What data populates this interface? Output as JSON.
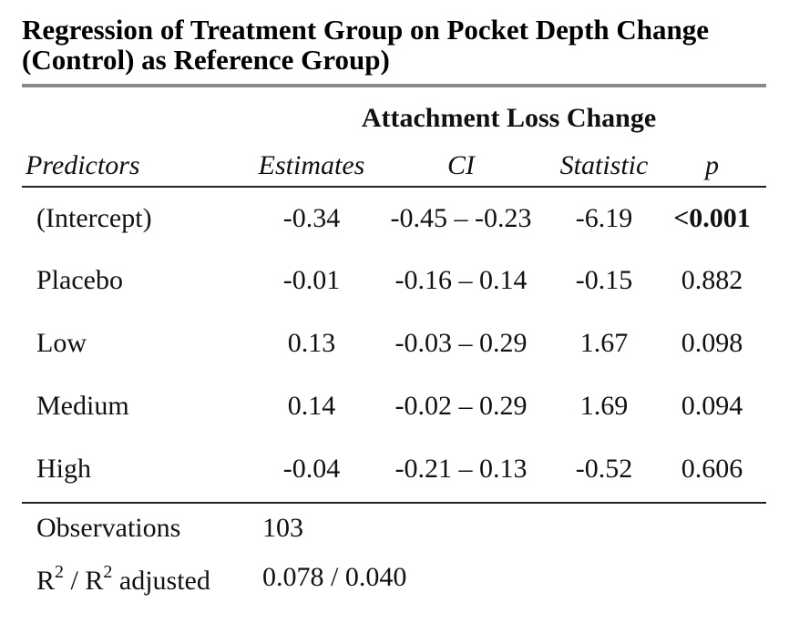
{
  "caption": {
    "line1": "Regression of Treatment Group on Pocket Depth Change",
    "line2": "(Control) as Reference Group)"
  },
  "dependent_variable": "Attachment Loss Change",
  "columns": {
    "predictors": "Predictors",
    "estimates": "Estimates",
    "ci": "CI",
    "statistic": "Statistic",
    "p": "p"
  },
  "rows": [
    {
      "predictor": "(Intercept)",
      "estimate": "-0.34",
      "ci": "-0.45 – -0.23",
      "statistic": "-6.19",
      "p": "<0.001",
      "p_bold": true
    },
    {
      "predictor": "Placebo",
      "estimate": "-0.01",
      "ci": "-0.16 – 0.14",
      "statistic": "-0.15",
      "p": "0.882",
      "p_bold": false
    },
    {
      "predictor": "Low",
      "estimate": "0.13",
      "ci": "-0.03 – 0.29",
      "statistic": "1.67",
      "p": "0.098",
      "p_bold": false
    },
    {
      "predictor": "Medium",
      "estimate": "0.14",
      "ci": "-0.02 – 0.29",
      "statistic": "1.69",
      "p": "0.094",
      "p_bold": false
    },
    {
      "predictor": "High",
      "estimate": "-0.04",
      "ci": "-0.21 – 0.13",
      "statistic": "-0.52",
      "p": "0.606",
      "p_bold": false
    }
  ],
  "footer": {
    "observations_label": "Observations",
    "observations_value": "103",
    "r2_label_base": "R",
    "r2_label_sup": "2",
    "r2_label_sep": " / R",
    "r2_label_sup2": "2",
    "r2_label_suffix": " adjusted",
    "r2_value": "0.078 / 0.040"
  }
}
